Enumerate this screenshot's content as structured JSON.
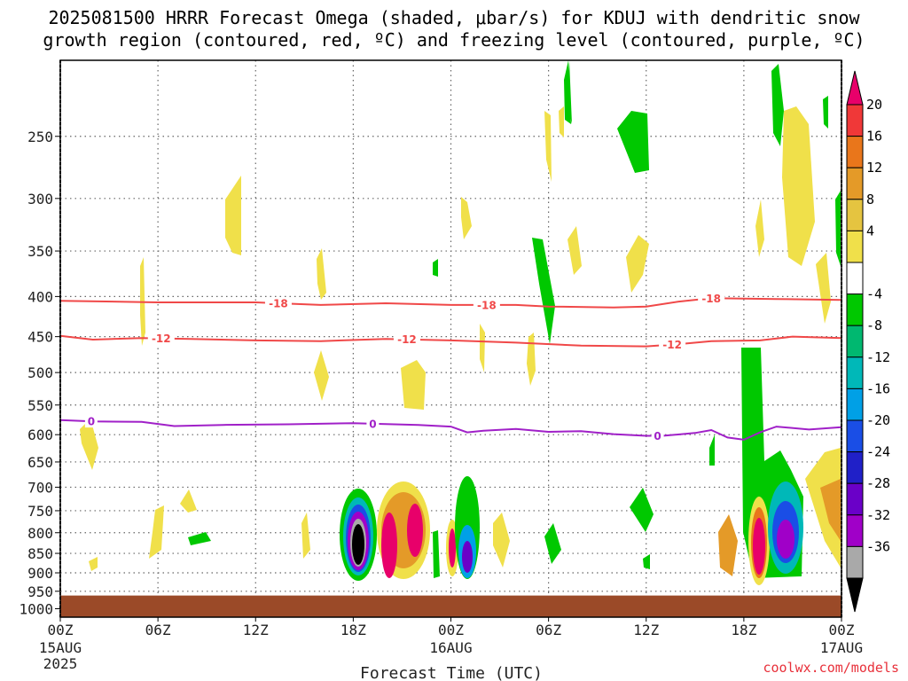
{
  "title_line1": "2025081500 HRRR Forecast Omega (shaded, μbar/s) for KDUJ with dendritic snow",
  "title_line2": "growth region (contoured, red, ºC) and freezing level (contoured, purple, ºC)",
  "credit": "coolwx.com/models",
  "chart_data": {
    "type": "heatmap",
    "xlabel": "Forecast Time (UTC)",
    "ylabel": "",
    "x_hours_range": [
      0,
      48
    ],
    "x_ticks": [
      {
        "hour": 0,
        "label": "00Z",
        "sub1": "15AUG",
        "sub2": "2025"
      },
      {
        "hour": 6,
        "label": "06Z"
      },
      {
        "hour": 12,
        "label": "12Z"
      },
      {
        "hour": 18,
        "label": "18Z"
      },
      {
        "hour": 24,
        "label": "00Z",
        "sub1": "16AUG"
      },
      {
        "hour": 30,
        "label": "06Z"
      },
      {
        "hour": 36,
        "label": "12Z"
      },
      {
        "hour": 42,
        "label": "18Z"
      },
      {
        "hour": 48,
        "label": "00Z",
        "sub1": "17AUG"
      }
    ],
    "y_pressure_levels_hPa": [
      250,
      300,
      350,
      400,
      450,
      500,
      550,
      600,
      650,
      700,
      750,
      800,
      850,
      900,
      950,
      1000
    ],
    "y_range_hPa": [
      200,
      1025
    ],
    "y_scale": "log-pressure",
    "grid": true,
    "ground_surface_hPa": 962,
    "colorbar": {
      "labels": [
        "20",
        "16",
        "12",
        "8",
        "4",
        "-4",
        "-8",
        "-12",
        "-16",
        "-20",
        "-24",
        "-28",
        "-32",
        "-36"
      ],
      "colors": [
        "#e8006a",
        "#f03838",
        "#e9761b",
        "#e49a28",
        "#e5c440",
        "#f0e04a",
        "#ffffff",
        "#00c800",
        "#00b870",
        "#00b8b8",
        "#00a0e6",
        "#1a4ee6",
        "#2020c8",
        "#6a00c8",
        "#a000c8",
        "#a9a9a9",
        "#000000"
      ]
    },
    "contours": [
      {
        "name": "-18",
        "color": "#f04848",
        "label_hours": [
          13.4,
          26.2,
          40
        ],
        "points": [
          [
            0,
            405
          ],
          [
            6,
            407
          ],
          [
            12,
            407
          ],
          [
            16,
            410
          ],
          [
            20,
            408
          ],
          [
            24,
            410
          ],
          [
            28,
            410
          ],
          [
            30,
            412
          ],
          [
            34,
            413
          ],
          [
            36,
            412
          ],
          [
            38,
            406
          ],
          [
            40,
            402
          ],
          [
            44,
            403
          ],
          [
            48,
            404
          ]
        ]
      },
      {
        "name": "-12",
        "color": "#f04848",
        "label_hours": [
          6.2,
          21.3,
          37.6
        ],
        "points": [
          [
            0,
            449
          ],
          [
            2,
            454
          ],
          [
            5,
            452
          ],
          [
            8,
            453
          ],
          [
            12,
            455
          ],
          [
            16,
            456
          ],
          [
            20,
            453
          ],
          [
            24,
            455
          ],
          [
            28,
            458
          ],
          [
            32,
            462
          ],
          [
            36,
            463
          ],
          [
            38,
            460
          ],
          [
            40,
            456
          ],
          [
            43,
            455
          ],
          [
            45,
            450
          ],
          [
            48,
            452
          ]
        ]
      },
      {
        "name": "0",
        "color": "#a020c8",
        "label_hours": [
          1.9,
          19.2,
          36.7
        ],
        "points": [
          [
            0,
            575
          ],
          [
            2,
            577
          ],
          [
            5,
            578
          ],
          [
            7,
            585
          ],
          [
            10,
            583
          ],
          [
            14,
            582
          ],
          [
            18,
            580
          ],
          [
            22,
            583
          ],
          [
            24,
            586
          ],
          [
            25,
            596
          ],
          [
            26,
            593
          ],
          [
            28,
            590
          ],
          [
            30,
            595
          ],
          [
            32,
            594
          ],
          [
            34,
            599
          ],
          [
            36,
            602
          ],
          [
            37,
            602
          ],
          [
            39,
            597
          ],
          [
            40,
            592
          ],
          [
            41,
            605
          ],
          [
            42,
            609
          ],
          [
            43,
            596
          ],
          [
            44,
            586
          ],
          [
            46,
            591
          ],
          [
            48,
            587
          ]
        ]
      }
    ],
    "shaded_regions": [
      {
        "label": "4",
        "hour_range": [
          15.8,
          16.2
        ],
        "hPa_range": [
          355,
          410
        ]
      },
      {
        "label": "4",
        "hour_range": [
          21.0,
          22.5
        ],
        "hPa_range": [
          505,
          570
        ]
      },
      {
        "label": "4",
        "hour_range": [
          40.6,
          41.4
        ],
        "hPa_range": [
          775,
          880
        ]
      },
      {
        "label": "-4",
        "hour_range": [
          34.5,
          36.5
        ],
        "hPa_range": [
          235,
          280
        ]
      },
      {
        "label": "-4",
        "hour_range": [
          42.2,
          44.5
        ],
        "hPa_range": [
          480,
          640
        ]
      },
      {
        "label": "-32",
        "hour_range": [
          17.3,
          19.4
        ],
        "hPa_range": [
          725,
          930
        ]
      },
      {
        "label": "-24",
        "hour_range": [
          43.5,
          45.2
        ],
        "hPa_range": [
          735,
          920
        ]
      },
      {
        "label": "20",
        "hour_range": [
          19.4,
          21.4
        ],
        "hPa_range": [
          765,
          920
        ]
      },
      {
        "label": "20",
        "hour_range": [
          41.7,
          43.6
        ],
        "hPa_range": [
          745,
          940
        ]
      }
    ]
  }
}
